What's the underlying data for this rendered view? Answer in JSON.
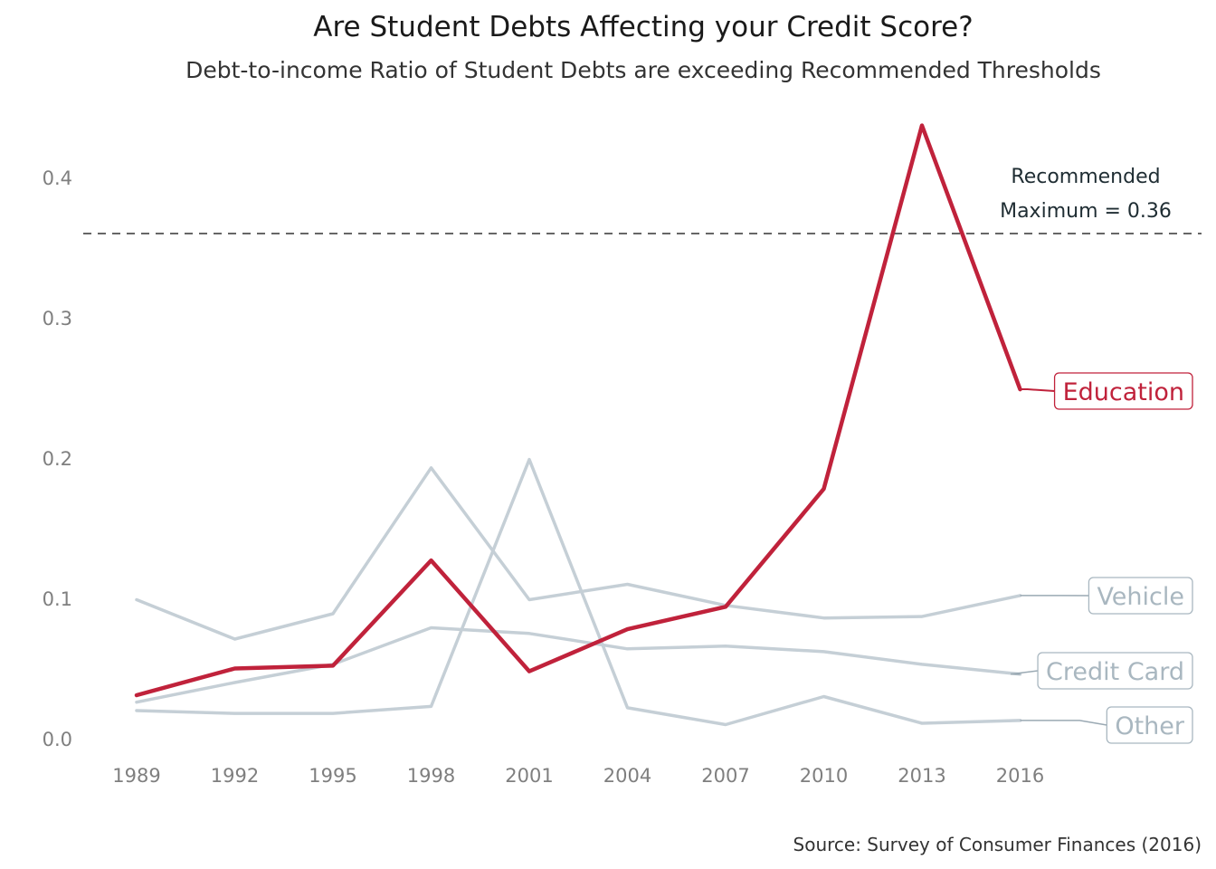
{
  "colors": {
    "highlight": "#c0223b",
    "muted": "#c5cfd6",
    "muted_label": "#a9b7c0",
    "reference": "#333333"
  },
  "chart_data": {
    "type": "line",
    "title": "Are Student Debts Affecting your Credit Score?",
    "subtitle": "Debt-to-income Ratio of Student Debts are exceeding Recommended Thresholds",
    "source": "Source: Survey of Consumer Finances (2016)",
    "x": [
      1989,
      1992,
      1995,
      1998,
      2001,
      2004,
      2007,
      2010,
      2013,
      2016
    ],
    "y_ticks": [
      0.0,
      0.1,
      0.2,
      0.3,
      0.4
    ],
    "y_tick_labels": [
      "0.0",
      "0.1",
      "0.2",
      "0.3",
      "0.4"
    ],
    "ylim": [
      0,
      0.44
    ],
    "grid": false,
    "legend": "direct labels at line ends (right)",
    "series": [
      {
        "name": "Vehicle",
        "highlight": false,
        "values": [
          0.099,
          0.071,
          0.089,
          0.193,
          0.099,
          0.11,
          0.095,
          0.086,
          0.087,
          0.102
        ]
      },
      {
        "name": "Credit Card",
        "highlight": false,
        "values": [
          0.026,
          0.04,
          0.053,
          0.079,
          0.075,
          0.064,
          0.066,
          0.062,
          0.053,
          0.046
        ]
      },
      {
        "name": "Other",
        "highlight": false,
        "values": [
          0.02,
          0.018,
          0.018,
          0.023,
          0.199,
          0.022,
          0.01,
          0.03,
          0.011,
          0.013
        ]
      },
      {
        "name": "Education",
        "highlight": true,
        "values": [
          0.031,
          0.05,
          0.052,
          0.127,
          0.048,
          0.078,
          0.094,
          0.178,
          0.437,
          0.249
        ]
      }
    ],
    "reference_line": {
      "value": 0.36,
      "label_line1": "Recommended",
      "label_line2": "Maximum = 0.36"
    }
  }
}
